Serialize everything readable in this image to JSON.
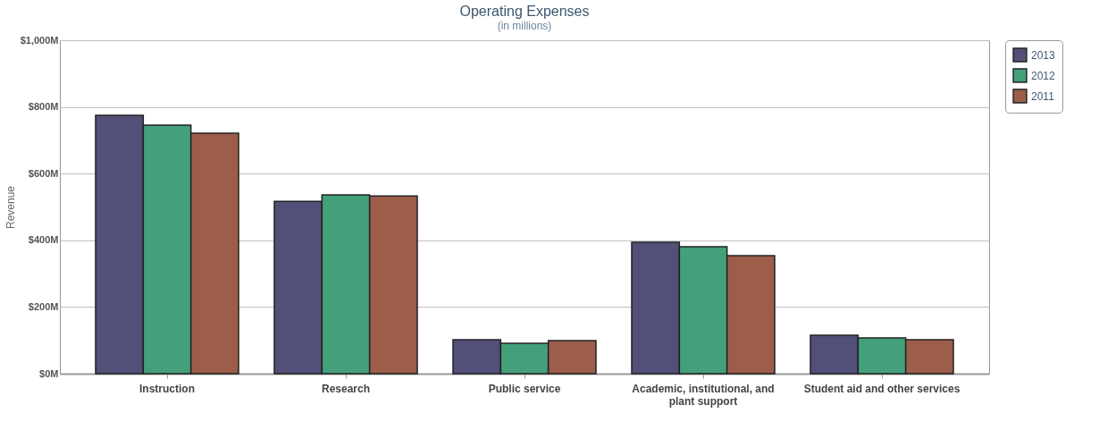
{
  "chart_data": {
    "type": "bar",
    "title": "Operating Expenses",
    "subtitle": "(in millions)",
    "ylabel": "Revenue",
    "categories": [
      "Instruction",
      "Research",
      "Public service",
      "Academic, institutional, and plant support",
      "Student aid and other services"
    ],
    "series": [
      {
        "name": "2013",
        "color": "#524f78",
        "values": [
          775,
          517,
          102,
          394,
          115
        ]
      },
      {
        "name": "2012",
        "color": "#43a07a",
        "values": [
          745,
          536,
          91,
          381,
          107
        ]
      },
      {
        "name": "2011",
        "color": "#9c5d4a",
        "values": [
          721,
          533,
          99,
          354,
          102
        ]
      }
    ],
    "ylim": [
      0,
      1000
    ],
    "yticks": [
      {
        "value": 0,
        "label": "$0M"
      },
      {
        "value": 200,
        "label": "$200M"
      },
      {
        "value": 400,
        "label": "$400M"
      },
      {
        "value": 600,
        "label": "$600M"
      },
      {
        "value": 800,
        "label": "$800M"
      },
      {
        "value": 1000,
        "label": "$1,000M"
      }
    ],
    "grid": "y",
    "legend": "top right"
  }
}
